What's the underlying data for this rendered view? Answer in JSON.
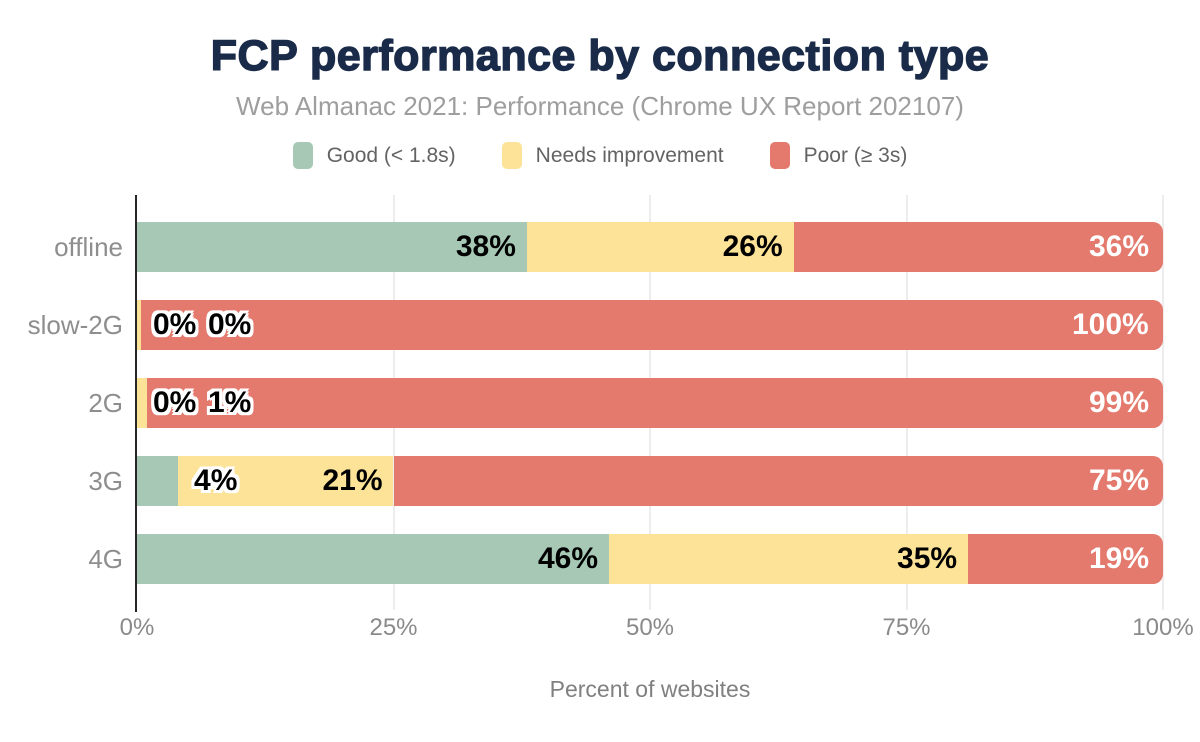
{
  "chart_data": {
    "type": "bar",
    "orientation": "horizontal",
    "stacked": true,
    "title": "FCP performance by connection type",
    "subtitle": "Web Almanac 2021: Performance (Chrome UX Report 202107)",
    "categories": [
      "offline",
      "slow-2G",
      "2G",
      "3G",
      "4G"
    ],
    "series": [
      {
        "name": "Good (< 1.8s)",
        "color": "#a6c8b5",
        "values": [
          38,
          0,
          0,
          4,
          46
        ],
        "render_widths": [
          38,
          0,
          0,
          4,
          46
        ],
        "labels": [
          "38%",
          "0%",
          "0%",
          "4%",
          "46%"
        ]
      },
      {
        "name": "Needs improvement",
        "color": "#fde398",
        "values": [
          26,
          0,
          1,
          21,
          35
        ],
        "render_widths": [
          26,
          0.35,
          1,
          21,
          35
        ],
        "labels": [
          "26%",
          "0%",
          "1%",
          "21%",
          "35%"
        ]
      },
      {
        "name": "Poor (≥ 3s)",
        "color": "#e4796d",
        "values": [
          36,
          100,
          99,
          75,
          19
        ],
        "render_widths": [
          36,
          99.65,
          99,
          75,
          19
        ],
        "labels": [
          "36%",
          "100%",
          "99%",
          "75%",
          "19%"
        ]
      }
    ],
    "value_suffix": "%",
    "xlabel": "Percent of websites",
    "xlim": [
      0,
      100
    ],
    "x_ticks": [
      {
        "label": "0%",
        "value": 0
      },
      {
        "label": "25%",
        "value": 25
      },
      {
        "label": "50%",
        "value": 50
      },
      {
        "label": "75%",
        "value": 75
      },
      {
        "label": "100%",
        "value": 100
      }
    ],
    "grid": "vertical",
    "legend_position": "top"
  },
  "colors": {
    "title": "#1a2b49",
    "subtitle": "#9e9e9e",
    "category_text": "#8e8e8e",
    "tick_text": "#8a8a8a",
    "axis_title_text": "#808080",
    "legend_text": "#636363",
    "axis_line": "#262626",
    "grid_line": "#ededed",
    "label_dark": "#000000",
    "label_light": "#ffffff",
    "background": "#ffffff"
  }
}
